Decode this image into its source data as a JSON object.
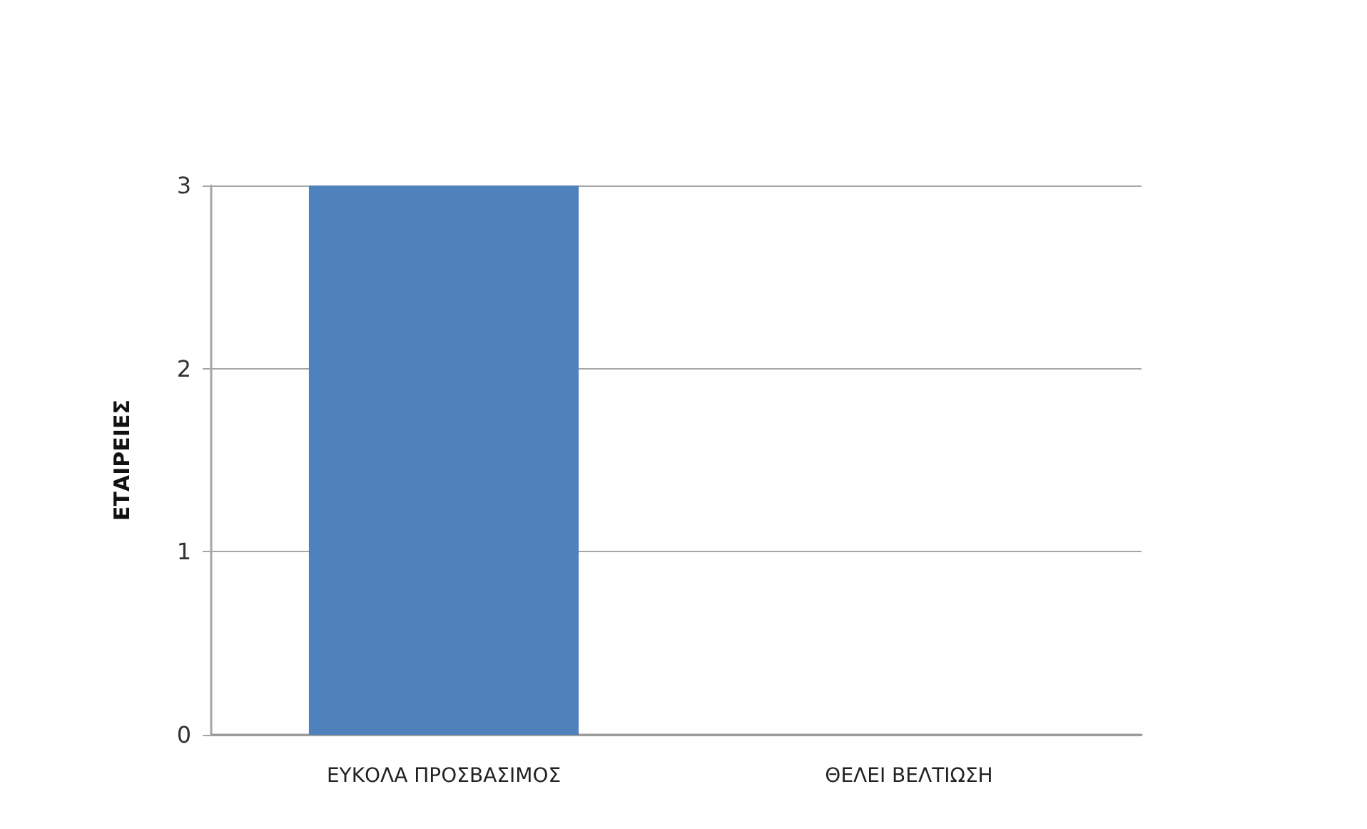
{
  "chart_data": {
    "type": "bar",
    "ylabel": "ΕΤΑΙΡΕΙΕΣ",
    "categories": [
      "ΕΥΚΟΛΑ ΠΡΟΣΒΑΣΙΜΟΣ",
      "ΘΕΛΕΙ ΒΕΛΤΙΩΣΗ"
    ],
    "values": [
      3,
      0
    ],
    "color": "#4f81bd",
    "ylim": [
      0,
      3
    ],
    "yticks": [
      0,
      1,
      2,
      3
    ],
    "grid": "y"
  }
}
